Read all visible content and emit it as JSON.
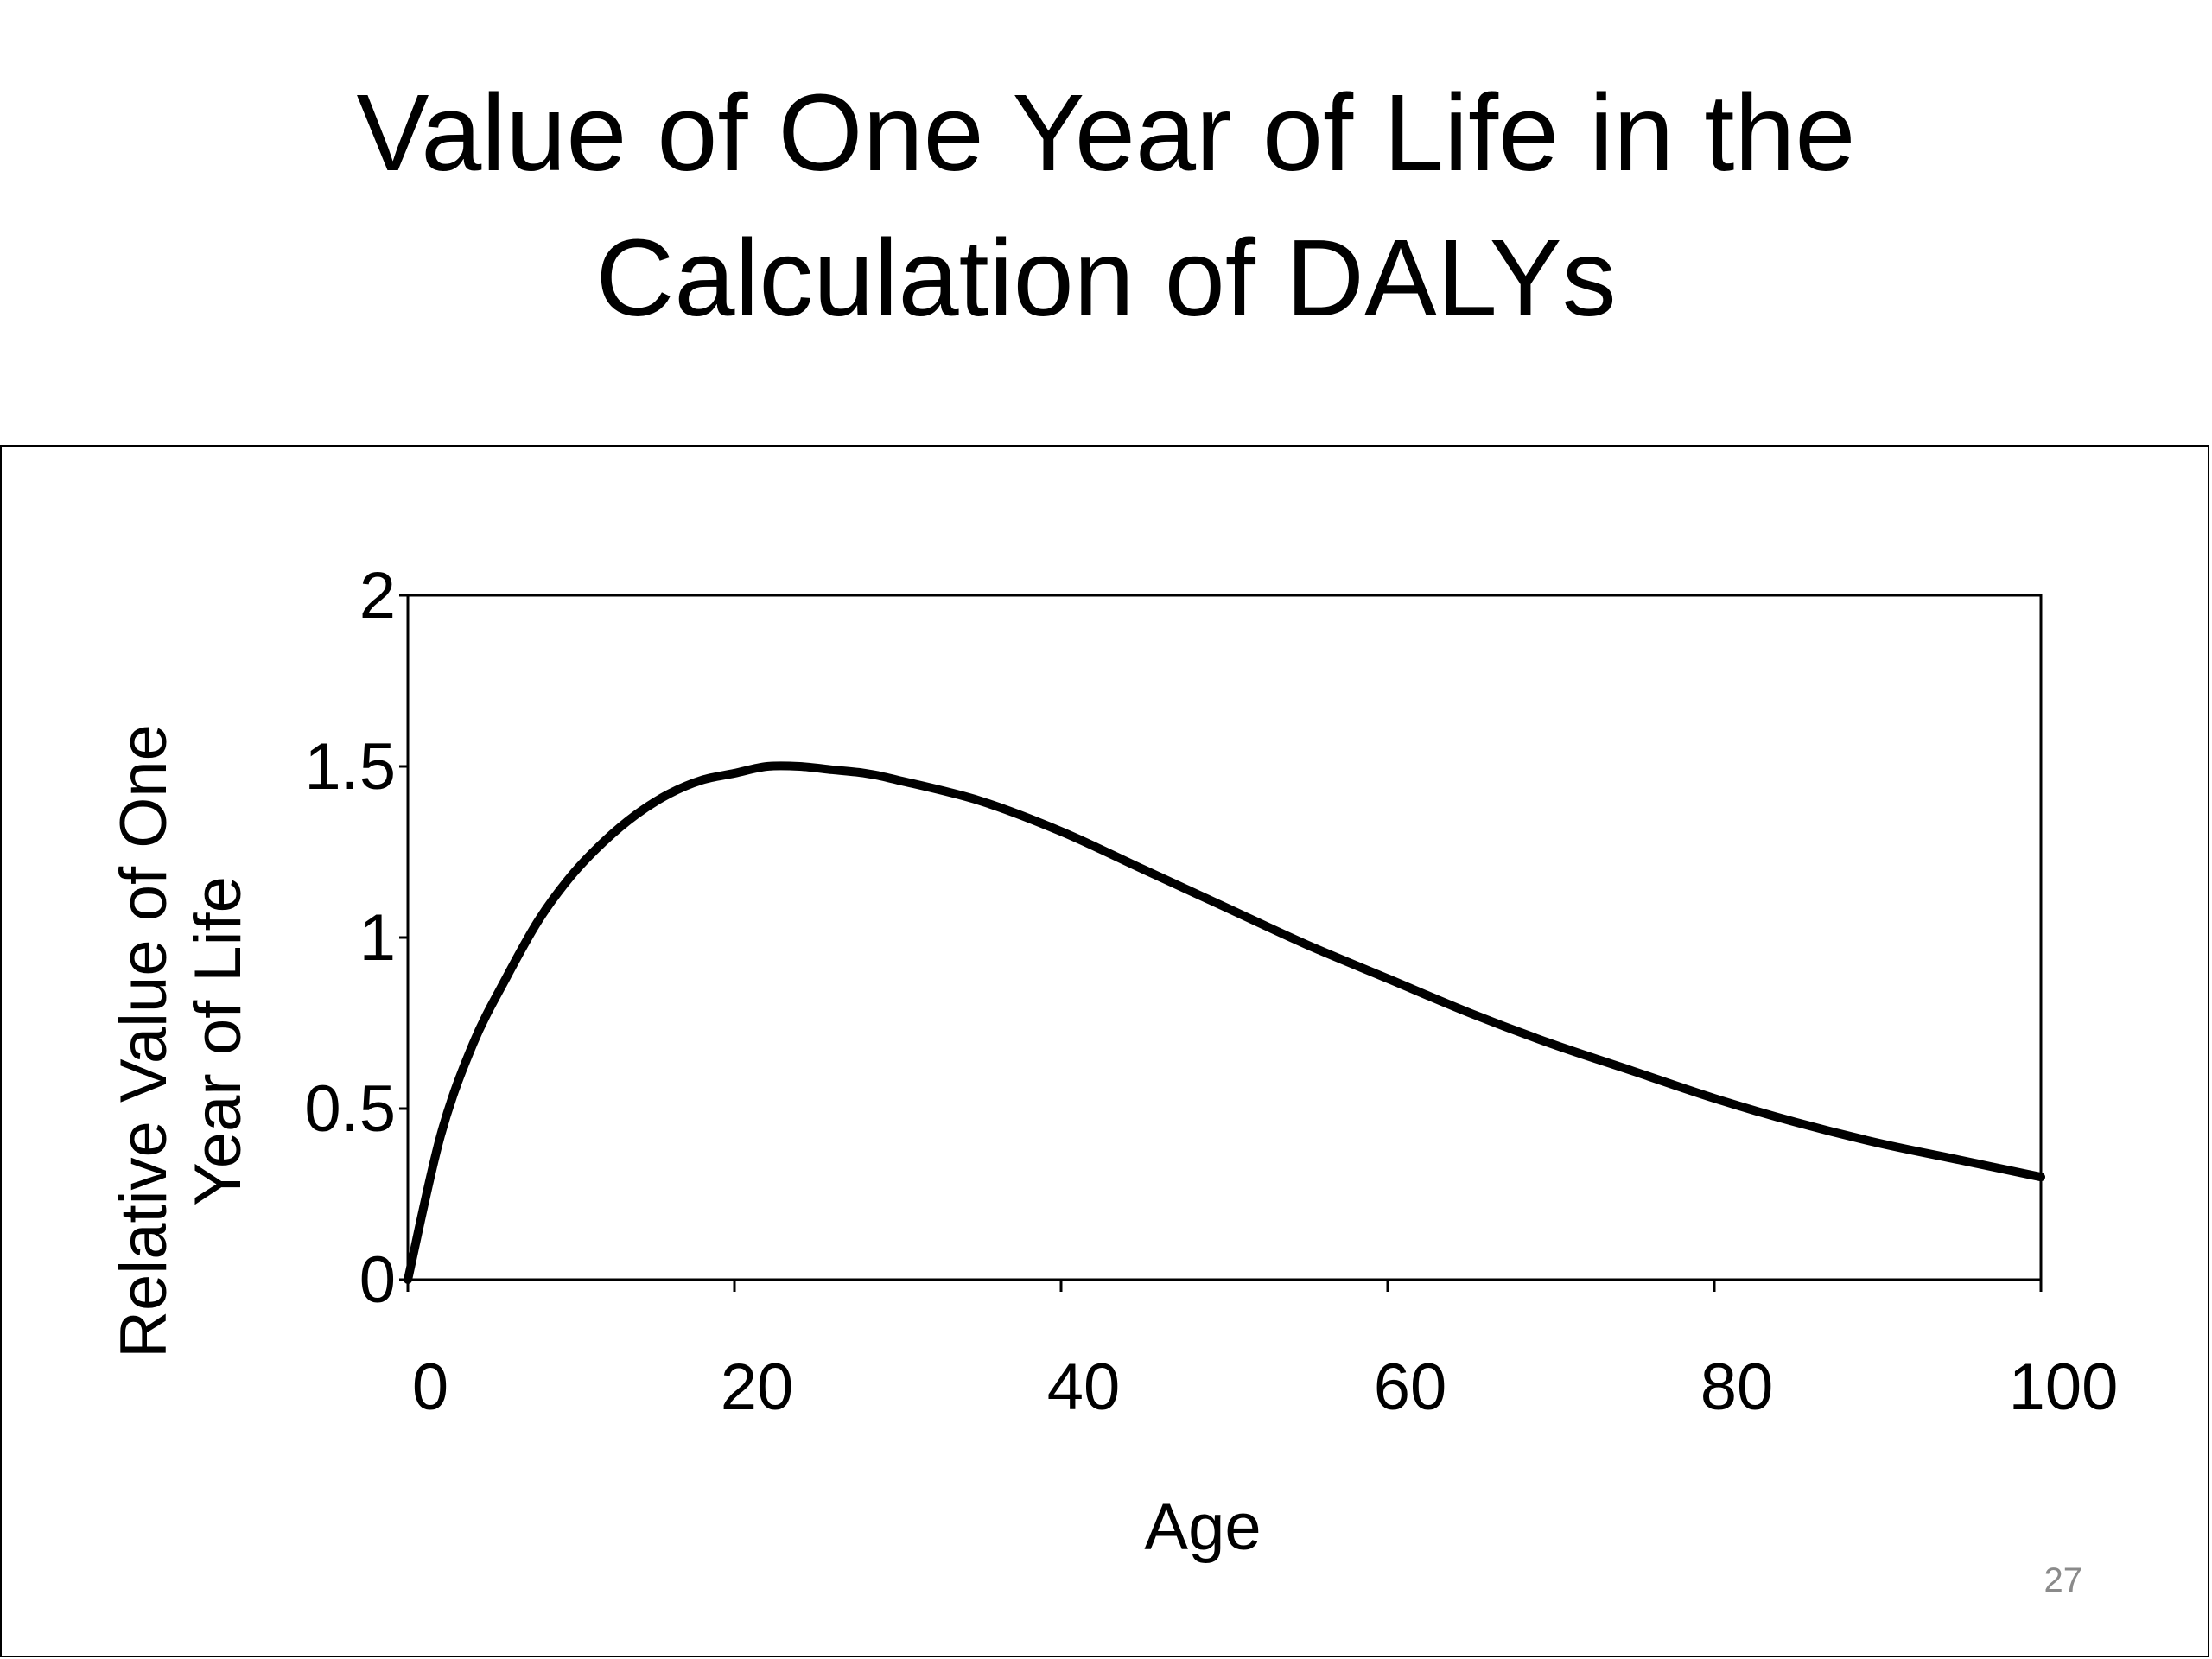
{
  "slide": {
    "title_line1": "Value of One Year of Life in the",
    "title_line2": "Calculation of DALYs",
    "page_number": "27"
  },
  "chart_data": {
    "type": "line",
    "title": "",
    "xlabel": "Age",
    "ylabel_line1": "Relative Value of One",
    "ylabel_line2": "Year of Life",
    "xlim": [
      0,
      100
    ],
    "ylim": [
      0,
      2
    ],
    "x_ticks": [
      {
        "value": 0,
        "label": "0"
      },
      {
        "value": 20,
        "label": "20"
      },
      {
        "value": 40,
        "label": "40"
      },
      {
        "value": 60,
        "label": "60"
      },
      {
        "value": 80,
        "label": "80"
      },
      {
        "value": 100,
        "label": "100"
      }
    ],
    "y_ticks": [
      {
        "value": 0,
        "label": "0"
      },
      {
        "value": 0.5,
        "label": "0.5"
      },
      {
        "value": 1,
        "label": "1"
      },
      {
        "value": 1.5,
        "label": "1.5"
      },
      {
        "value": 2,
        "label": "2"
      }
    ],
    "grid": false,
    "legend": "none",
    "series": [
      {
        "name": "",
        "color": "#000000",
        "x": [
          0,
          2,
          4,
          6,
          8,
          10,
          12,
          14,
          16,
          18,
          20,
          22,
          24,
          26,
          28,
          30,
          35,
          40,
          45,
          50,
          55,
          60,
          65,
          70,
          75,
          80,
          85,
          90,
          95,
          100
        ],
        "y": [
          0,
          0.42,
          0.69,
          0.88,
          1.05,
          1.18,
          1.28,
          1.36,
          1.42,
          1.46,
          1.48,
          1.5,
          1.5,
          1.49,
          1.48,
          1.46,
          1.4,
          1.31,
          1.2,
          1.09,
          0.98,
          0.88,
          0.78,
          0.69,
          0.61,
          0.53,
          0.46,
          0.4,
          0.35,
          0.3
        ]
      }
    ]
  }
}
